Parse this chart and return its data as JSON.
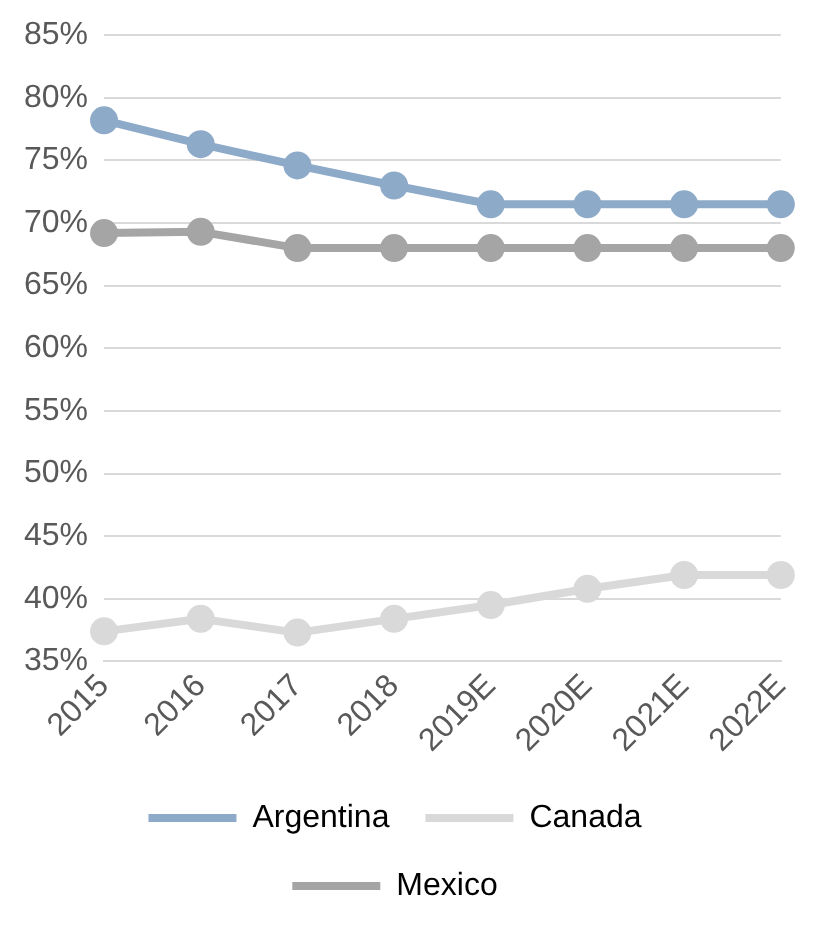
{
  "chart_data": {
    "type": "line",
    "categories": [
      "2015",
      "2016",
      "2017",
      "2018",
      "2019E",
      "2020E",
      "2021E",
      "2022E"
    ],
    "series": [
      {
        "name": "Argentina",
        "color": "#8eaac9",
        "values": [
          78.2,
          76.3,
          74.6,
          73.0,
          71.5,
          71.5,
          71.5,
          71.5
        ]
      },
      {
        "name": "Canada",
        "color": "#d9d9d9",
        "values": [
          37.4,
          38.4,
          37.3,
          38.4,
          39.5,
          40.8,
          41.9,
          41.9
        ]
      },
      {
        "name": "Mexico",
        "color": "#a5a5a5",
        "values": [
          69.2,
          69.3,
          68.0,
          68.0,
          68.0,
          68.0,
          68.0,
          68.0
        ]
      }
    ],
    "ylim": [
      35,
      85
    ],
    "yticks": [
      {
        "value": 35,
        "label": "35%"
      },
      {
        "value": 40,
        "label": "40%"
      },
      {
        "value": 45,
        "label": "45%"
      },
      {
        "value": 50,
        "label": "50%"
      },
      {
        "value": 55,
        "label": "55%"
      },
      {
        "value": 60,
        "label": "60%"
      },
      {
        "value": 65,
        "label": "65%"
      },
      {
        "value": 70,
        "label": "70%"
      },
      {
        "value": 75,
        "label": "75%"
      },
      {
        "value": 80,
        "label": "80%"
      },
      {
        "value": 85,
        "label": "85%"
      }
    ],
    "grid": "y",
    "legend": "bottom",
    "marker": "circle",
    "line_style": "solid"
  }
}
